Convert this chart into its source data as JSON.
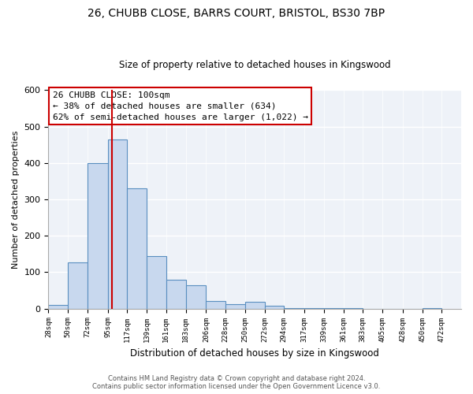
{
  "title": "26, CHUBB CLOSE, BARRS COURT, BRISTOL, BS30 7BP",
  "subtitle": "Size of property relative to detached houses in Kingswood",
  "xlabel": "Distribution of detached houses by size in Kingswood",
  "ylabel": "Number of detached properties",
  "bar_left_edges": [
    28,
    50,
    72,
    95,
    117,
    139,
    161,
    183,
    206,
    228,
    250,
    272,
    294,
    317,
    339,
    361,
    383,
    405,
    428,
    450
  ],
  "bar_heights": [
    10,
    128,
    400,
    465,
    330,
    145,
    80,
    65,
    22,
    12,
    18,
    8,
    2,
    1,
    2,
    1,
    0,
    0,
    0,
    2
  ],
  "tick_labels": [
    "28sqm",
    "50sqm",
    "72sqm",
    "95sqm",
    "117sqm",
    "139sqm",
    "161sqm",
    "183sqm",
    "206sqm",
    "228sqm",
    "250sqm",
    "272sqm",
    "294sqm",
    "317sqm",
    "339sqm",
    "361sqm",
    "383sqm",
    "405sqm",
    "428sqm",
    "450sqm",
    "472sqm"
  ],
  "tick_positions": [
    28,
    50,
    72,
    95,
    117,
    139,
    161,
    183,
    206,
    228,
    250,
    272,
    294,
    317,
    339,
    361,
    383,
    405,
    428,
    450,
    472
  ],
  "bar_color": "#c8d8ee",
  "bar_edge_color": "#5a8fc0",
  "property_line_x": 100,
  "property_line_color": "#cc0000",
  "ylim": [
    0,
    600
  ],
  "xlim": [
    28,
    494
  ],
  "annotation_title": "26 CHUBB CLOSE: 100sqm",
  "annotation_line1": "← 38% of detached houses are smaller (634)",
  "annotation_line2": "62% of semi-detached houses are larger (1,022) →",
  "footer_line1": "Contains HM Land Registry data © Crown copyright and database right 2024.",
  "footer_line2": "Contains public sector information licensed under the Open Government Licence v3.0.",
  "background_color": "#eef2f8",
  "grid_color": "#ffffff",
  "title_fontsize": 10,
  "subtitle_fontsize": 8.5,
  "ylabel_fontsize": 8,
  "xlabel_fontsize": 8.5,
  "tick_fontsize": 6.5,
  "annot_fontsize": 8,
  "footer_fontsize": 6
}
